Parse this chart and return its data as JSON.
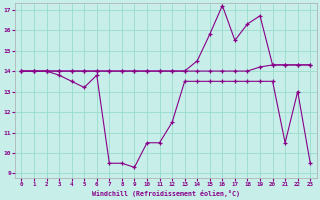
{
  "xlabel": "Windchill (Refroidissement éolien,°C)",
  "bg_color": "#c8eeea",
  "line_color": "#880088",
  "grid_color": "#99ddcc",
  "series1_x": [
    0,
    1,
    2,
    3,
    4,
    5,
    6,
    7,
    8,
    9,
    10,
    11,
    12,
    13,
    14,
    15,
    16,
    17,
    18,
    19,
    20,
    21,
    22,
    23
  ],
  "series1_y": [
    14.0,
    14.0,
    14.0,
    14.0,
    14.0,
    14.0,
    14.0,
    14.0,
    14.0,
    14.0,
    14.0,
    14.0,
    14.0,
    14.0,
    14.0,
    14.0,
    14.0,
    14.0,
    14.0,
    14.2,
    14.3,
    14.3,
    14.3,
    14.3
  ],
  "series2_x": [
    0,
    1,
    2,
    3,
    4,
    5,
    6,
    7,
    8,
    9,
    10,
    11,
    12,
    13,
    14,
    15,
    16,
    17,
    18,
    19,
    20,
    21,
    22,
    23
  ],
  "series2_y": [
    14.0,
    14.0,
    14.0,
    14.0,
    14.0,
    14.0,
    14.0,
    14.0,
    14.0,
    14.0,
    14.0,
    14.0,
    14.0,
    14.0,
    14.5,
    15.8,
    17.2,
    15.5,
    16.3,
    16.7,
    14.3,
    14.3,
    14.3,
    14.3
  ],
  "series3_x": [
    0,
    1,
    2,
    3,
    4,
    5,
    6,
    7,
    8,
    9,
    10,
    11,
    12,
    13,
    14,
    15,
    16,
    17,
    18,
    19,
    20,
    21,
    22,
    23
  ],
  "series3_y": [
    14.0,
    14.0,
    14.0,
    13.8,
    13.5,
    13.2,
    13.8,
    9.5,
    9.5,
    9.3,
    10.5,
    10.5,
    11.5,
    13.5,
    13.5,
    13.5,
    13.5,
    13.5,
    13.5,
    13.5,
    13.5,
    10.5,
    13.0,
    9.5
  ],
  "xlim": [
    -0.5,
    23.5
  ],
  "ylim": [
    8.8,
    17.3
  ],
  "yticks": [
    9,
    10,
    11,
    12,
    13,
    14,
    15,
    16,
    17
  ],
  "xticks": [
    0,
    1,
    2,
    3,
    4,
    5,
    6,
    7,
    8,
    9,
    10,
    11,
    12,
    13,
    14,
    15,
    16,
    17,
    18,
    19,
    20,
    21,
    22,
    23
  ],
  "figsize": [
    3.2,
    2.0
  ],
  "dpi": 100
}
